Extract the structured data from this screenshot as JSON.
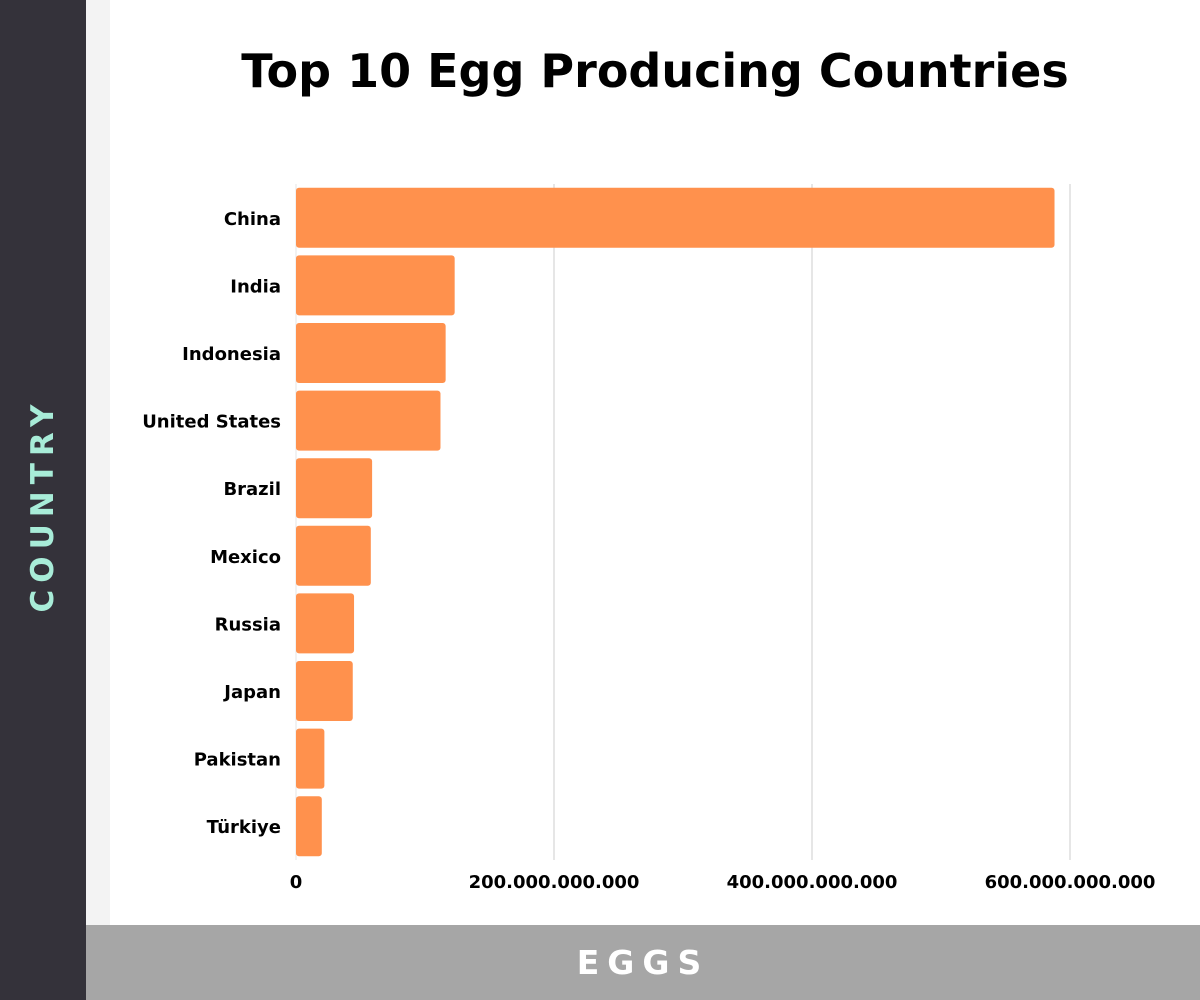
{
  "chart_data": {
    "type": "bar",
    "orientation": "horizontal",
    "title": "Top 10 Egg Producing Countries",
    "xlabel": "EGGS",
    "ylabel": "COUNTRY",
    "categories": [
      "China",
      "India",
      "Indonesia",
      "United States",
      "Brazil",
      "Mexico",
      "Russia",
      "Japan",
      "Pakistan",
      "Türkiye"
    ],
    "values": [
      588000000000,
      123000000000,
      116000000000,
      112000000000,
      59000000000,
      58000000000,
      45000000000,
      44000000000,
      22000000000,
      20000000000
    ],
    "xlim": [
      0,
      600000000000
    ],
    "xticks": [
      0,
      200000000000,
      400000000000,
      600000000000
    ],
    "xtick_labels": [
      "0",
      "200.000.000.000",
      "400.000.000.000",
      "600.000.000.000"
    ],
    "grid": true,
    "bar_color": "#ff914d"
  },
  "colors": {
    "side_band": "#34323a",
    "axis_title_vertical": "#a8ecd8",
    "bottom_band": "#a6a6a6",
    "gridline": "#cccccc"
  }
}
